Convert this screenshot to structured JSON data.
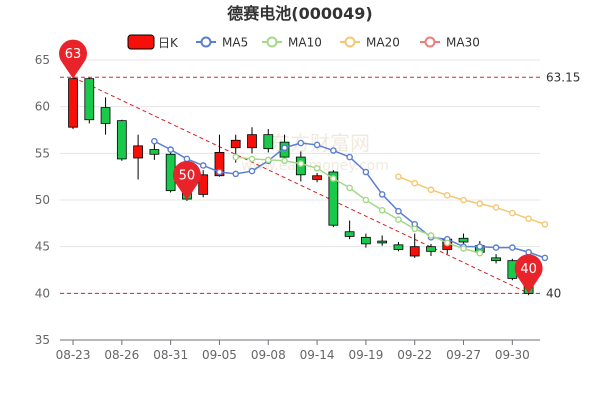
{
  "title": "德赛电池(000049)",
  "watermark": "东方财富网",
  "watermark_sub": "www.eastmoney.com",
  "colors": {
    "up": "#f71009",
    "down": "#18c94b",
    "ma5": "#5b7fd1",
    "ma10": "#a5d88a",
    "ma20": "#f4c873",
    "ma30": "#ef7b7b",
    "refline": "#d9262b",
    "pin": "#e8232a"
  },
  "chart_data": {
    "type": "candlestick",
    "title": "德赛电池(000049)",
    "legend": [
      "日K",
      "MA5",
      "MA10",
      "MA20",
      "MA30"
    ],
    "legend_position": "top",
    "ylim": [
      35,
      65
    ],
    "yticks": [
      35,
      40,
      45,
      50,
      55,
      60,
      65
    ],
    "xticks": [
      "08-23",
      "08-26",
      "08-31",
      "09-05",
      "09-08",
      "09-14",
      "09-19",
      "09-22",
      "09-27",
      "09-30"
    ],
    "grid": "horizontal",
    "candles": [
      {
        "o": 57.8,
        "c": 63.0,
        "h": 63.2,
        "l": 57.6
      },
      {
        "o": 63.0,
        "c": 58.6,
        "h": 63.1,
        "l": 58.2
      },
      {
        "o": 59.9,
        "c": 58.2,
        "h": 61.0,
        "l": 57.0
      },
      {
        "o": 58.5,
        "c": 54.4,
        "h": 58.6,
        "l": 54.2
      },
      {
        "o": 54.5,
        "c": 55.8,
        "h": 57.0,
        "l": 52.2
      },
      {
        "o": 55.4,
        "c": 54.9,
        "h": 56.0,
        "l": 54.3
      },
      {
        "o": 54.9,
        "c": 51.0,
        "h": 55.6,
        "l": 50.8
      },
      {
        "o": 51.0,
        "c": 50.1,
        "h": 52.2,
        "l": 49.9
      },
      {
        "o": 50.6,
        "c": 52.7,
        "h": 53.2,
        "l": 50.3
      },
      {
        "o": 52.6,
        "c": 55.1,
        "h": 57.0,
        "l": 52.5
      },
      {
        "o": 55.6,
        "c": 56.4,
        "h": 57.0,
        "l": 54.0
      },
      {
        "o": 55.6,
        "c": 57.0,
        "h": 57.8,
        "l": 55.0
      },
      {
        "o": 57.0,
        "c": 55.5,
        "h": 57.6,
        "l": 55.1
      },
      {
        "o": 56.2,
        "c": 54.6,
        "h": 57.0,
        "l": 54.3
      },
      {
        "o": 54.6,
        "c": 52.7,
        "h": 55.2,
        "l": 52.0
      },
      {
        "o": 52.2,
        "c": 52.6,
        "h": 52.9,
        "l": 51.9
      },
      {
        "o": 53.0,
        "c": 47.3,
        "h": 53.2,
        "l": 47.1
      },
      {
        "o": 46.6,
        "c": 46.1,
        "h": 47.8,
        "l": 45.8
      },
      {
        "o": 46.0,
        "c": 45.3,
        "h": 46.4,
        "l": 44.9
      },
      {
        "o": 45.6,
        "c": 45.4,
        "h": 46.2,
        "l": 45.1
      },
      {
        "o": 45.2,
        "c": 44.7,
        "h": 45.5,
        "l": 44.5
      },
      {
        "o": 44.0,
        "c": 45.0,
        "h": 46.4,
        "l": 43.8
      },
      {
        "o": 45.0,
        "c": 44.5,
        "h": 45.3,
        "l": 44.0
      },
      {
        "o": 44.7,
        "c": 45.8,
        "h": 46.1,
        "l": 44.2
      },
      {
        "o": 45.9,
        "c": 45.5,
        "h": 46.4,
        "l": 45.2
      },
      {
        "o": 45.1,
        "c": 44.4,
        "h": 45.6,
        "l": 44.0
      },
      {
        "o": 43.8,
        "c": 43.5,
        "h": 44.2,
        "l": 43.2
      },
      {
        "o": 43.5,
        "c": 41.6,
        "h": 43.7,
        "l": 41.4
      },
      {
        "o": 41.6,
        "c": 40.0,
        "h": 41.8,
        "l": 39.8
      }
    ],
    "series": [
      {
        "name": "MA5",
        "start": 5,
        "values": [
          56.3,
          55.4,
          54.4,
          53.7,
          53.0,
          52.8,
          53.1,
          54.2,
          55.6,
          56.1,
          55.9,
          55.3,
          54.6,
          53.0,
          50.6,
          48.8,
          47.4,
          46.0,
          45.8,
          45.0,
          45.0,
          44.9,
          44.9,
          44.4,
          43.8
        ]
      },
      {
        "name": "MA10",
        "start": 10,
        "values": [
          54.6,
          54.4,
          54.3,
          54.2,
          53.9,
          53.4,
          52.3,
          51.3,
          50.0,
          48.9,
          47.9,
          46.9,
          46.2,
          45.4,
          44.8,
          44.3
        ]
      },
      {
        "name": "MA20",
        "start": 20,
        "values": [
          52.5,
          51.8,
          51.1,
          50.5,
          50.0,
          49.6,
          49.2,
          48.6,
          48.0,
          47.4
        ]
      }
    ],
    "reference_lines": [
      {
        "value": 63.15,
        "label": "63.15"
      },
      {
        "value": 40,
        "label": "40"
      }
    ],
    "pins": [
      {
        "index": 0,
        "value": 63,
        "label": "63"
      },
      {
        "index": 7,
        "value": 50,
        "label": "50"
      },
      {
        "index": 28,
        "value": 40,
        "label": "40"
      }
    ]
  }
}
